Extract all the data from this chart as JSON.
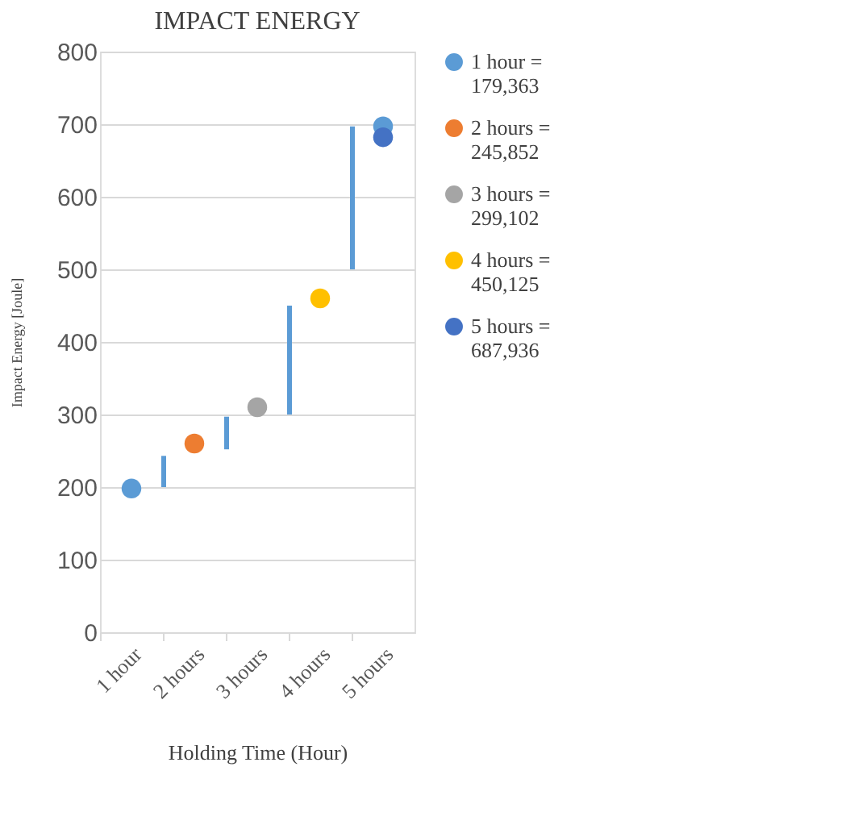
{
  "chart_data": {
    "type": "scatter",
    "title": "IMPACT    ENERGY",
    "xlabel": "Holding  Time   (Hour)",
    "ylabel": "Impact Energy [Joule]",
    "categories": [
      "1 hour",
      "2 hours",
      "3 hours",
      "4 hours",
      "5 hours"
    ],
    "ylim": [
      0,
      800
    ],
    "yticks": [
      0,
      100,
      200,
      300,
      400,
      500,
      600,
      700,
      800
    ],
    "grid": "y",
    "legend": "right",
    "marker": "circle",
    "series": [
      {
        "name": "1 hour = 179,363",
        "color": "#5b9bd5",
        "values": [
          198,
          null,
          null,
          null,
          697
        ]
      },
      {
        "name": "2 hours = 245,852",
        "color": "#ed7d31",
        "values": [
          null,
          260,
          null,
          null,
          null
        ]
      },
      {
        "name": "3 hours = 299,102",
        "color": "#a5a5a5",
        "values": [
          null,
          null,
          310,
          null,
          null
        ]
      },
      {
        "name": "4 hours = 450,125",
        "color": "#ffc000",
        "values": [
          null,
          null,
          null,
          460,
          null
        ]
      },
      {
        "name": "5 hours = 687,936",
        "color": "#4472c4",
        "values": [
          null,
          null,
          null,
          null,
          682
        ]
      },
      {
        "type": "bar",
        "color": "#5b9bd5",
        "base": [
          200,
          252,
          300,
          500,
          null
        ],
        "values": [
          43,
          45,
          150,
          197,
          null
        ]
      }
    ]
  }
}
